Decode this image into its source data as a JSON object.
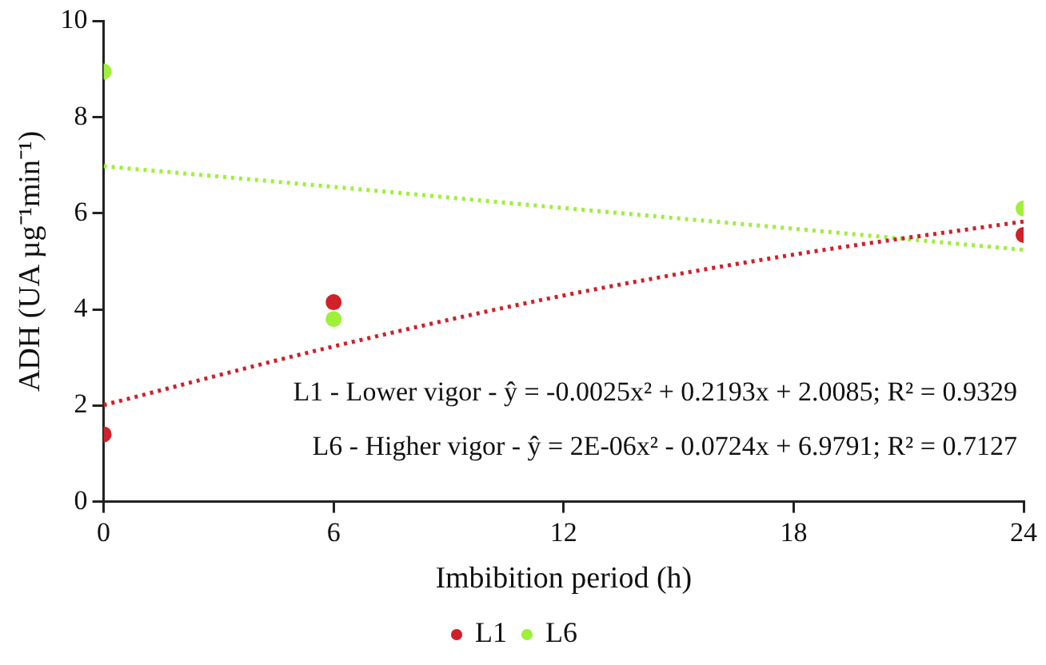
{
  "chart_data": {
    "type": "scatter",
    "xlabel": "Imbibition period (h)",
    "ylabel": "ADH (UA µg⁻¹min⁻¹)",
    "x": [
      0,
      6,
      24
    ],
    "series": [
      {
        "name": "L1",
        "color": "#d0202a",
        "values": [
          1.4,
          4.15,
          5.55
        ]
      },
      {
        "name": "L6",
        "color": "#9ef03a",
        "values": [
          8.95,
          3.8,
          6.1
        ]
      },
      {
        "type": "line",
        "color": "#d0202a",
        "line_style": "dotted",
        "marker": "none",
        "x": [
          0,
          6,
          12,
          18,
          24
        ],
        "values": [
          2.01,
          3.23,
          4.29,
          5.14,
          5.83
        ]
      },
      {
        "type": "line",
        "color": "#9ef03a",
        "line_style": "dotted",
        "marker": "none",
        "x": [
          0,
          6,
          12,
          18,
          24
        ],
        "values": [
          6.98,
          6.55,
          6.11,
          5.68,
          5.24
        ]
      }
    ],
    "xlim": [
      0,
      24
    ],
    "xticks": [
      0,
      6,
      12,
      18,
      24
    ],
    "ylim": [
      0,
      10
    ],
    "yticks": [
      0,
      2,
      4,
      6,
      8,
      10
    ],
    "grid": false,
    "legend": "bottom",
    "marker": "circle",
    "annotations": [
      "L1 - Lower vigor - ŷ = -0.0025x² + 0.2193x + 2.0085; R² = 0.9329",
      "L6 - Higher vigor - ŷ = 2E-06x² - 0.0724x + 6.9791; R² = 0.7127"
    ]
  }
}
